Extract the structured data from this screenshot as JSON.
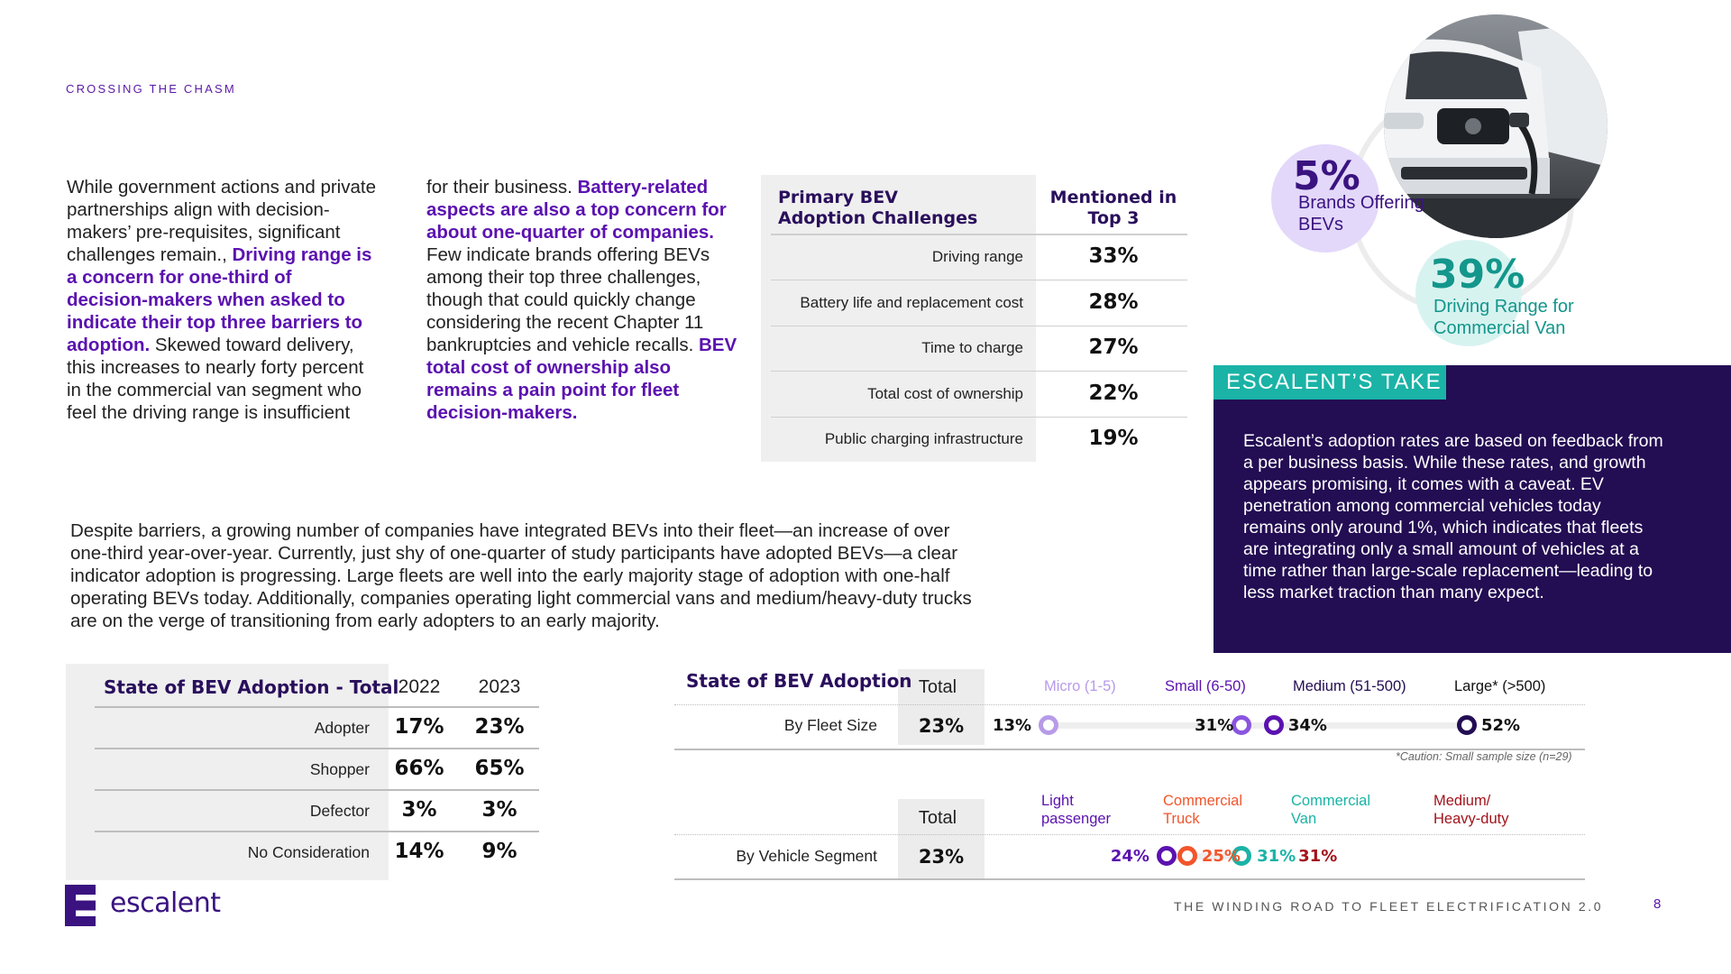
{
  "header": {
    "eyebrow": "CROSSING THE CHASM"
  },
  "col1": {
    "t1": "While government actions and private partnerships align with decision-makers’ pre-requisites, significant challenges remain., ",
    "h1": "Driving range is a concern for one-third of decision-makers when asked to indicate their top three barriers to adoption.",
    "t2": " Skewed toward delivery, this increases to nearly forty percent in the commercial van segment who feel the driving range is insufficient"
  },
  "col2": {
    "t1": "for their business. ",
    "h1": "Battery-related aspects are also a top concern for about one-quarter of companies.",
    "t2": " Few indicate brands offering BEVs among their top three challenges, though that could quickly change considering the recent Chapter 11 bankruptcies and vehicle recalls. ",
    "h2": "BEV total cost of ownership also remains a pain point for fleet decision-makers."
  },
  "challenges": {
    "header_label": "Primary BEV Adoption Challenges",
    "header_value": "Mentioned in Top 3",
    "rows": [
      {
        "label": "Driving range",
        "value": "33%"
      },
      {
        "label": "Battery life and replacement cost",
        "value": "28%"
      },
      {
        "label": "Time to charge",
        "value": "27%"
      },
      {
        "label": "Total cost of ownership",
        "value": "22%"
      },
      {
        "label": "Public charging infrastructure",
        "value": "19%"
      }
    ]
  },
  "stats": {
    "brands_value": "5%",
    "brands_label": "Brands Offering BEVs",
    "range_value": "39%",
    "range_label": "Driving Range for Commercial Van"
  },
  "take": {
    "tag": "ESCALENT’S TAKE",
    "text": "Escalent’s adoption rates are based on feedback from a per business basis. While these rates, and growth appears promising, it comes with a caveat. EV penetration among commercial vehicles today remains only around 1%, which indicates that fleets are integrating only a small amount of vehicles at a time rather than large-scale replacement—leading to less market traction than many expect."
  },
  "wide_paragraph": "Despite barriers, a growing number of companies have integrated BEVs into their fleet—an increase of over one-third year-over-year. Currently, just shy of one-quarter of study participants have adopted BEVs—a clear indicator adoption is progressing. Large fleets are well into the early majority stage of adoption with one-half operating BEVs today. Additionally, companies operating light commercial vans and medium/heavy-duty trucks are on the verge of transitioning from early adopters to an early majority.",
  "adoption_total": {
    "title": "State of BEV Adoption - Total",
    "years": [
      "2022",
      "2023"
    ],
    "rows": [
      {
        "label": "Adopter",
        "v2022": "17%",
        "v2023": "23%"
      },
      {
        "label": "Shopper",
        "v2022": "66%",
        "v2023": "65%"
      },
      {
        "label": "Defector",
        "v2022": "3%",
        "v2023": "3%"
      },
      {
        "label": "No Consideration",
        "v2022": "14%",
        "v2023": "9%"
      }
    ]
  },
  "adoption_detail": {
    "title": "State of BEV Adoption",
    "total_label": "Total",
    "fleet": {
      "row_label": "By Fleet Size",
      "total": "23%",
      "headers": [
        "Micro (1-5)",
        "Small (6-50)",
        "Medium (51-500)",
        "Large* (>500)"
      ],
      "values": [
        "13%",
        "31%",
        "34%",
        "52%"
      ],
      "caution": "*Caution: Small sample size (n=29)"
    },
    "segment": {
      "row_label": "By Vehicle Segment",
      "total": "23%",
      "headers": [
        "Light passenger",
        "Commercial Truck",
        "Commercial Van",
        "Medium/ Heavy-duty"
      ],
      "header_lines": [
        [
          "Light",
          "passenger"
        ],
        [
          "Commercial",
          "Truck"
        ],
        [
          "Commercial",
          "Van"
        ],
        [
          "Medium/",
          "Heavy-duty"
        ]
      ],
      "values": [
        "24%",
        "25%",
        "31%",
        "31%"
      ]
    }
  },
  "colors": {
    "purple": "#5b12b0",
    "dark_navy": "#230d53",
    "teal": "#1ab3a6",
    "light_purple": "#b79be8",
    "mid_purple": "#8a55e0",
    "coral": "#f2552c",
    "dark_red": "#a3131b"
  },
  "footer": {
    "logo": "escalent",
    "title": "THE WINDING ROAD TO FLEET ELECTRIFICATION 2.0",
    "page": "8"
  }
}
